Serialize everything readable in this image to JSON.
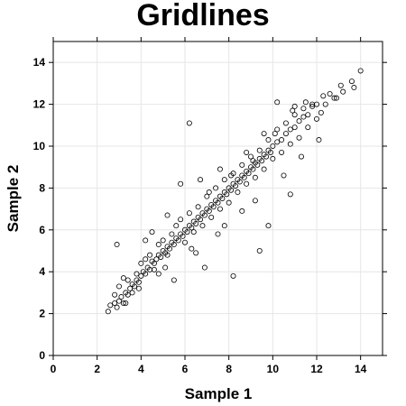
{
  "chart_data": {
    "type": "scatter",
    "title": "Gridlines",
    "xlabel": "Sample 1",
    "ylabel": "Sample 2",
    "xlim": [
      0,
      15
    ],
    "ylim": [
      0,
      15
    ],
    "xticks": [
      0,
      2,
      4,
      6,
      8,
      10,
      12,
      14
    ],
    "yticks": [
      0,
      2,
      4,
      6,
      8,
      10,
      12,
      14
    ],
    "grid": true,
    "legend": "none",
    "point_color": "#000000",
    "series": [
      {
        "points": [
          [
            2.5,
            2.1
          ],
          [
            2.6,
            2.4
          ],
          [
            2.8,
            2.5
          ],
          [
            2.9,
            2.3
          ],
          [
            3.0,
            2.6
          ],
          [
            3.1,
            2.8
          ],
          [
            3.2,
            2.5
          ],
          [
            3.3,
            3.0
          ],
          [
            3.4,
            2.9
          ],
          [
            3.5,
            3.2
          ],
          [
            3.6,
            3.4
          ],
          [
            3.7,
            3.3
          ],
          [
            3.8,
            3.6
          ],
          [
            3.9,
            3.5
          ],
          [
            4.0,
            3.8
          ],
          [
            4.1,
            4.0
          ],
          [
            4.2,
            3.9
          ],
          [
            4.3,
            4.2
          ],
          [
            4.4,
            4.1
          ],
          [
            4.5,
            4.5
          ],
          [
            4.6,
            4.4
          ],
          [
            4.7,
            4.6
          ],
          [
            4.8,
            4.8
          ],
          [
            4.9,
            4.7
          ],
          [
            5.0,
            5.0
          ],
          [
            5.1,
            4.9
          ],
          [
            5.2,
            5.2
          ],
          [
            5.3,
            5.1
          ],
          [
            5.4,
            5.4
          ],
          [
            5.5,
            5.3
          ],
          [
            5.6,
            5.6
          ],
          [
            5.7,
            5.5
          ],
          [
            5.8,
            5.8
          ],
          [
            5.9,
            5.7
          ],
          [
            6.0,
            6.0
          ],
          [
            6.1,
            5.9
          ],
          [
            6.2,
            6.2
          ],
          [
            6.3,
            6.1
          ],
          [
            6.4,
            6.4
          ],
          [
            6.5,
            6.3
          ],
          [
            6.6,
            6.6
          ],
          [
            6.7,
            6.5
          ],
          [
            6.8,
            6.8
          ],
          [
            6.9,
            6.7
          ],
          [
            7.0,
            7.0
          ],
          [
            7.1,
            6.9
          ],
          [
            7.2,
            7.2
          ],
          [
            7.3,
            7.1
          ],
          [
            7.4,
            7.4
          ],
          [
            7.5,
            7.3
          ],
          [
            7.6,
            7.6
          ],
          [
            7.7,
            7.5
          ],
          [
            7.8,
            7.8
          ],
          [
            7.9,
            7.7
          ],
          [
            8.0,
            8.0
          ],
          [
            8.1,
            7.9
          ],
          [
            8.2,
            8.2
          ],
          [
            8.3,
            8.1
          ],
          [
            8.4,
            8.4
          ],
          [
            8.5,
            8.3
          ],
          [
            8.6,
            8.6
          ],
          [
            8.7,
            8.5
          ],
          [
            8.8,
            8.8
          ],
          [
            8.9,
            8.7
          ],
          [
            9.0,
            9.0
          ],
          [
            9.1,
            8.9
          ],
          [
            9.2,
            9.2
          ],
          [
            9.3,
            9.1
          ],
          [
            9.4,
            9.4
          ],
          [
            9.5,
            9.3
          ],
          [
            9.6,
            9.6
          ],
          [
            9.7,
            9.5
          ],
          [
            9.8,
            9.8
          ],
          [
            9.9,
            9.7
          ],
          [
            10.0,
            10.0
          ],
          [
            10.2,
            10.2
          ],
          [
            10.4,
            10.3
          ],
          [
            10.6,
            10.6
          ],
          [
            10.8,
            10.8
          ],
          [
            11.0,
            10.9
          ],
          [
            11.2,
            11.2
          ],
          [
            11.4,
            11.4
          ],
          [
            11.6,
            11.5
          ],
          [
            11.8,
            11.9
          ],
          [
            12.0,
            12.0
          ],
          [
            12.3,
            12.4
          ],
          [
            12.6,
            12.5
          ],
          [
            12.9,
            12.3
          ],
          [
            13.2,
            12.6
          ],
          [
            13.6,
            13.1
          ],
          [
            13.7,
            12.8
          ],
          [
            14.0,
            13.6
          ],
          [
            2.8,
            2.9
          ],
          [
            3.0,
            3.3
          ],
          [
            3.2,
            3.7
          ],
          [
            3.4,
            3.6
          ],
          [
            3.6,
            3.0
          ],
          [
            3.8,
            3.9
          ],
          [
            4.0,
            4.4
          ],
          [
            4.2,
            4.6
          ],
          [
            4.4,
            4.8
          ],
          [
            4.6,
            4.1
          ],
          [
            4.8,
            5.3
          ],
          [
            5.0,
            5.5
          ],
          [
            5.2,
            4.8
          ],
          [
            5.4,
            5.8
          ],
          [
            5.6,
            6.2
          ],
          [
            5.8,
            6.5
          ],
          [
            6.0,
            5.4
          ],
          [
            6.2,
            6.8
          ],
          [
            6.4,
            5.9
          ],
          [
            6.6,
            7.1
          ],
          [
            6.8,
            6.2
          ],
          [
            7.0,
            7.6
          ],
          [
            7.2,
            6.6
          ],
          [
            7.4,
            8.0
          ],
          [
            7.6,
            7.0
          ],
          [
            7.8,
            8.4
          ],
          [
            8.0,
            7.3
          ],
          [
            8.2,
            8.7
          ],
          [
            8.4,
            7.8
          ],
          [
            8.6,
            9.1
          ],
          [
            8.8,
            8.2
          ],
          [
            9.0,
            9.5
          ],
          [
            9.2,
            8.5
          ],
          [
            9.4,
            9.8
          ],
          [
            9.6,
            8.9
          ],
          [
            9.8,
            10.3
          ],
          [
            10.0,
            9.4
          ],
          [
            10.2,
            10.8
          ],
          [
            10.4,
            9.7
          ],
          [
            10.6,
            11.1
          ],
          [
            10.8,
            10.1
          ],
          [
            11.0,
            11.5
          ],
          [
            11.2,
            10.4
          ],
          [
            11.4,
            11.8
          ],
          [
            11.6,
            10.9
          ],
          [
            11.8,
            12.0
          ],
          [
            12.0,
            11.3
          ],
          [
            12.2,
            11.6
          ],
          [
            2.9,
            5.3
          ],
          [
            4.2,
            5.5
          ],
          [
            5.8,
            8.2
          ],
          [
            6.2,
            11.1
          ],
          [
            10.2,
            12.1
          ],
          [
            6.9,
            4.2
          ],
          [
            8.2,
            3.8
          ],
          [
            9.4,
            5.0
          ],
          [
            9.8,
            6.2
          ],
          [
            10.8,
            7.7
          ],
          [
            5.5,
            3.6
          ],
          [
            3.3,
            2.5
          ],
          [
            4.8,
            3.9
          ],
          [
            6.5,
            4.9
          ],
          [
            7.5,
            5.8
          ],
          [
            8.6,
            6.9
          ],
          [
            9.2,
            7.4
          ],
          [
            10.5,
            8.6
          ],
          [
            11.3,
            9.5
          ],
          [
            12.1,
            10.3
          ],
          [
            11.0,
            11.9
          ],
          [
            4.5,
            5.9
          ],
          [
            5.2,
            6.7
          ],
          [
            6.7,
            8.4
          ],
          [
            7.6,
            8.9
          ],
          [
            8.8,
            9.7
          ],
          [
            9.6,
            10.6
          ],
          [
            7.8,
            6.2
          ],
          [
            6.3,
            5.1
          ],
          [
            5.1,
            4.2
          ],
          [
            3.9,
            3.2
          ],
          [
            7.1,
            7.8
          ],
          [
            8.1,
            8.6
          ],
          [
            9.1,
            9.3
          ],
          [
            10.1,
            10.6
          ],
          [
            10.9,
            11.7
          ],
          [
            11.5,
            12.1
          ],
          [
            12.4,
            12.0
          ],
          [
            12.8,
            12.3
          ],
          [
            13.1,
            12.9
          ]
        ]
      }
    ]
  }
}
